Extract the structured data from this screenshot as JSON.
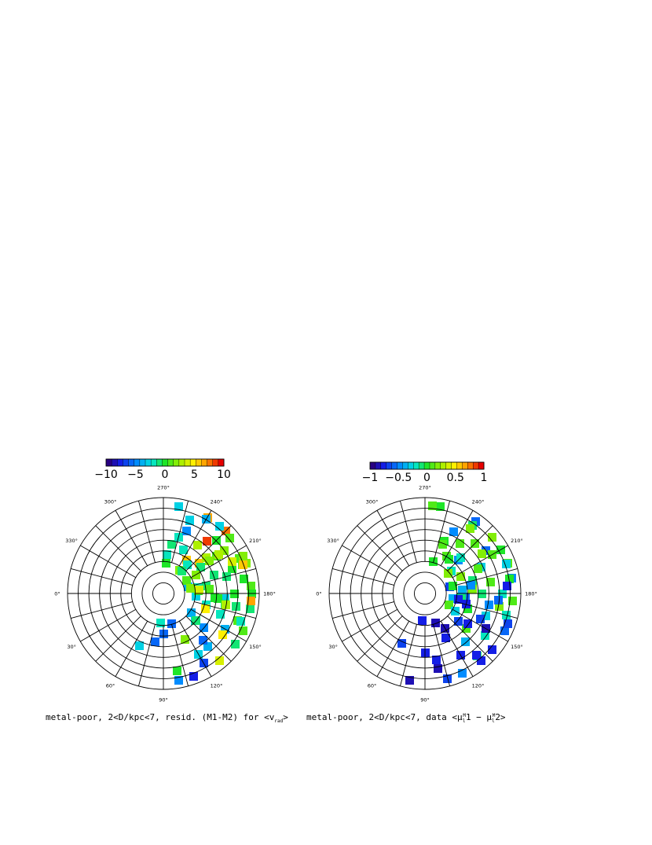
{
  "chart_data": [
    {
      "type": "heatmap",
      "projection": "polar",
      "caption": "metal-poor, 2<D/kpc<7, resid. (M1-M2) for <v",
      "caption_subscript": "rad",
      "caption_suffix": ">",
      "colorbar": {
        "min": -10,
        "max": 10,
        "ticks": [
          "-10",
          "-5",
          "0",
          "5",
          "10"
        ]
      },
      "angle_labels": [
        "270°",
        "240°",
        "210°",
        "180°",
        "150°",
        "120°",
        "90°",
        "60°",
        "30°",
        "0°",
        "330°",
        "300°"
      ],
      "grid": true,
      "cells": [
        [
          195,
          -4
        ],
        [
          215,
          2
        ],
        [
          220,
          6
        ],
        [
          225,
          8
        ],
        [
          230,
          9
        ],
        [
          235,
          6
        ],
        [
          240,
          7
        ],
        [
          175,
          -3
        ],
        [
          190,
          -2
        ],
        [
          205,
          1
        ],
        [
          220,
          3
        ],
        [
          235,
          2
        ],
        [
          250,
          -3
        ],
        [
          260,
          -1
        ],
        [
          170,
          -1
        ],
        [
          180,
          0
        ],
        [
          190,
          -1
        ],
        [
          205,
          2
        ],
        [
          215,
          1
        ],
        [
          230,
          -2
        ],
        [
          240,
          -4
        ],
        [
          255,
          -2
        ],
        [
          265,
          0
        ],
        [
          160,
          1
        ],
        [
          175,
          0
        ],
        [
          185,
          1
        ],
        [
          200,
          0
        ],
        [
          215,
          -1
        ],
        [
          230,
          -3
        ],
        [
          250,
          -5
        ],
        [
          265,
          -2
        ],
        [
          145,
          -1
        ],
        [
          160,
          -2
        ],
        [
          175,
          -3
        ],
        [
          190,
          0
        ],
        [
          200,
          -1
        ],
        [
          210,
          1
        ],
        [
          225,
          0
        ],
        [
          245,
          -2
        ],
        [
          260,
          -3
        ],
        [
          130,
          -4
        ],
        [
          140,
          -3
        ],
        [
          155,
          -2
        ],
        [
          170,
          -1
        ],
        [
          185,
          0
        ],
        [
          200,
          1
        ],
        [
          215,
          2
        ],
        [
          230,
          -1
        ],
        [
          250,
          -3
        ],
        [
          115,
          -5
        ],
        [
          130,
          -6
        ],
        [
          150,
          -4
        ],
        [
          165,
          -2
        ],
        [
          180,
          0
        ],
        [
          195,
          -1
        ],
        [
          210,
          2
        ],
        [
          220,
          1
        ],
        [
          235,
          3
        ],
        [
          105,
          -6
        ],
        [
          120,
          -7
        ],
        [
          140,
          -5
        ],
        [
          155,
          -3
        ],
        [
          170,
          -1
        ],
        [
          185,
          1
        ],
        [
          200,
          2
        ],
        [
          215,
          3
        ],
        [
          90,
          -6
        ],
        [
          110,
          -8
        ],
        [
          130,
          -6
        ],
        [
          145,
          -4
        ],
        [
          160,
          -2
        ],
        [
          175,
          0
        ],
        [
          190,
          2
        ],
        [
          205,
          4
        ],
        [
          80,
          -6
        ],
        [
          100,
          -5
        ],
        [
          120,
          -3
        ],
        [
          140,
          -1
        ],
        [
          155,
          1
        ],
        [
          170,
          3
        ],
        [
          185,
          4
        ],
        [
          200,
          6
        ],
        [
          65,
          -3
        ],
        [
          85,
          -2
        ],
        [
          100,
          0
        ],
        [
          115,
          2
        ],
        [
          130,
          4
        ],
        [
          145,
          5
        ],
        [
          160,
          5
        ],
        [
          175,
          7
        ]
      ]
    },
    {
      "type": "heatmap",
      "projection": "polar",
      "caption": "metal-poor, 2<D/kpc<7, data <μ",
      "caption_mid": "1 − μ",
      "caption_suffix": "2>",
      "caption_sub_letter": "l",
      "caption_sup_letter": "M",
      "colorbar": {
        "min": -1,
        "max": 1,
        "ticks": [
          "-1",
          "-0.5",
          "0",
          "0.5",
          "1"
        ]
      },
      "angle_labels": [
        "270°",
        "240°",
        "210°",
        "180°",
        "150°",
        "120°",
        "90°",
        "60°",
        "30°",
        "0°",
        "330°",
        "300°"
      ],
      "grid": true,
      "cells": [
        [
          195,
          -0.7
        ],
        [
          215,
          -0.6
        ],
        [
          225,
          -0.5
        ],
        [
          235,
          -0.6
        ],
        [
          245,
          -0.5
        ],
        [
          175,
          -0.6
        ],
        [
          190,
          -0.5
        ],
        [
          205,
          -0.3
        ],
        [
          220,
          -0.2
        ],
        [
          235,
          -0.1
        ],
        [
          250,
          0
        ],
        [
          170,
          -0.4
        ],
        [
          180,
          -0.2
        ],
        [
          195,
          -0.1
        ],
        [
          210,
          0
        ],
        [
          225,
          0.1
        ],
        [
          240,
          0.1
        ],
        [
          260,
          0
        ],
        [
          160,
          -0.3
        ],
        [
          175,
          -0.1
        ],
        [
          190,
          0
        ],
        [
          205,
          0.1
        ],
        [
          220,
          0.2
        ],
        [
          235,
          0.2
        ],
        [
          250,
          0.1
        ],
        [
          265,
          0.1
        ],
        [
          145,
          -0.2
        ],
        [
          160,
          0
        ],
        [
          175,
          0.1
        ],
        [
          190,
          0.1
        ],
        [
          205,
          0.2
        ],
        [
          220,
          0.2
        ],
        [
          235,
          0.1
        ],
        [
          255,
          0
        ],
        [
          130,
          -0.1
        ],
        [
          140,
          0.1
        ],
        [
          155,
          0.1
        ],
        [
          170,
          0.2
        ],
        [
          185,
          0.2
        ],
        [
          200,
          0.1
        ],
        [
          215,
          0.2
        ],
        [
          235,
          0
        ],
        [
          115,
          -0.5
        ],
        [
          130,
          -0.4
        ],
        [
          150,
          -0.3
        ],
        [
          165,
          -0.2
        ],
        [
          180,
          -0.1
        ],
        [
          195,
          0
        ],
        [
          210,
          0.1
        ],
        [
          225,
          -0.2
        ],
        [
          105,
          -0.7
        ],
        [
          120,
          -0.8
        ],
        [
          140,
          -0.7
        ],
        [
          155,
          -0.6
        ],
        [
          170,
          -0.5
        ],
        [
          185,
          -0.4
        ],
        [
          200,
          -0.3
        ],
        [
          90,
          -0.8
        ],
        [
          110,
          -0.9
        ],
        [
          130,
          -0.8
        ],
        [
          145,
          -0.8
        ],
        [
          160,
          -0.7
        ],
        [
          175,
          -0.6
        ],
        [
          190,
          -0.5
        ],
        [
          80,
          -0.9
        ],
        [
          100,
          -0.8
        ],
        [
          120,
          -0.9
        ],
        [
          140,
          -0.8
        ],
        [
          155,
          -0.7
        ],
        [
          170,
          -0.8
        ],
        [
          185,
          -0.8
        ],
        [
          65,
          -0.7
        ],
        [
          85,
          -0.8
        ],
        [
          100,
          -0.9
        ],
        [
          115,
          -0.8
        ],
        [
          130,
          -0.8
        ],
        [
          150,
          -0.9
        ],
        [
          165,
          -0.8
        ]
      ]
    }
  ]
}
